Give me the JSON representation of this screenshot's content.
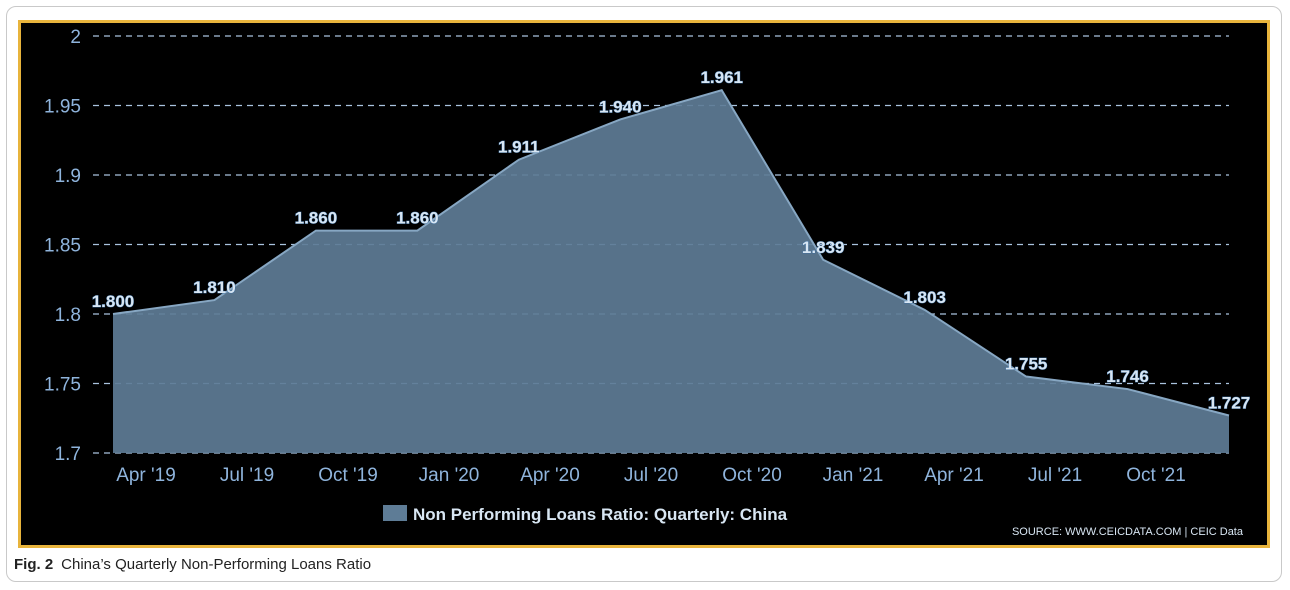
{
  "caption": {
    "label": "Fig. 2",
    "text": "China’s Quarterly Non-Performing Loans Ratio"
  },
  "colors": {
    "background": "#000000",
    "border": "#e8b43c",
    "area_fill": "#5e7c96",
    "area_stroke": "#87a7c3",
    "grid": "#a9c3de",
    "tick_text": "#8fb4dc",
    "data_label": "#d8e6f3"
  },
  "chart_data": {
    "type": "area",
    "title": "",
    "xlabel": "",
    "ylabel": "",
    "ylim": [
      1.7,
      2.0
    ],
    "yticks": [
      "2",
      "1.95",
      "1.9",
      "1.85",
      "1.8",
      "1.75",
      "1.7"
    ],
    "ytick_values": [
      2.0,
      1.95,
      1.9,
      1.85,
      1.8,
      1.75,
      1.7
    ],
    "x_tick_labels": [
      "Apr '19",
      "Jul '19",
      "Oct '19",
      "Jan '20",
      "Apr '20",
      "Jul '20",
      "Oct '20",
      "Jan '21",
      "Apr '21",
      "Jul '21",
      "Oct '21"
    ],
    "x": [
      "Mar 2019",
      "Jun 2019",
      "Sep 2019",
      "Dec 2019",
      "Mar 2020",
      "Jun 2020",
      "Sep 2020",
      "Dec 2020",
      "Mar 2021",
      "Jun 2021",
      "Sep 2021",
      "Dec 2021"
    ],
    "series": [
      {
        "name": "Non Performing Loans Ratio: Quarterly: China",
        "values": [
          1.8,
          1.81,
          1.86,
          1.86,
          1.911,
          1.94,
          1.961,
          1.839,
          1.803,
          1.755,
          1.746,
          1.727
        ],
        "labels": [
          "1.800",
          "1.810",
          "1.860",
          "1.860",
          "1.911",
          "1.940",
          "1.961",
          "1.839",
          "1.803",
          "1.755",
          "1.746",
          "1.727"
        ]
      }
    ],
    "grid": true,
    "legend_position": "bottom-center",
    "source": "SOURCE: WWW.CEICDATA.COM | CEIC Data"
  }
}
